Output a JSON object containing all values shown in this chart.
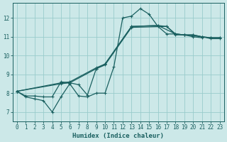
{
  "xlabel": "Humidex (Indice chaleur)",
  "xlim": [
    -0.5,
    23.5
  ],
  "ylim": [
    6.5,
    12.8
  ],
  "xticks": [
    0,
    1,
    2,
    3,
    4,
    5,
    6,
    7,
    8,
    9,
    10,
    11,
    12,
    13,
    14,
    15,
    16,
    17,
    18,
    19,
    20,
    21,
    22,
    23
  ],
  "yticks": [
    7,
    8,
    9,
    10,
    11,
    12
  ],
  "background_color": "#cce8e8",
  "grid_color": "#99cccc",
  "line_color": "#1a6060",
  "line1_x": [
    0,
    1,
    2,
    3,
    4,
    5,
    6,
    7,
    8,
    9,
    10,
    11,
    12,
    13,
    14,
    15,
    16,
    17,
    18,
    19,
    20,
    21
  ],
  "line1_y": [
    8.1,
    7.8,
    7.7,
    7.6,
    7.0,
    7.8,
    8.5,
    7.85,
    7.8,
    8.0,
    8.0,
    9.4,
    12.0,
    12.1,
    12.5,
    12.2,
    11.55,
    11.15,
    11.15,
    11.1,
    11.0,
    10.95
  ],
  "line2_x": [
    0,
    1,
    2,
    3,
    4,
    5,
    6,
    7,
    8,
    9,
    10,
    13,
    16,
    17,
    18,
    19,
    20,
    21,
    22,
    23
  ],
  "line2_y": [
    8.1,
    7.85,
    7.85,
    7.8,
    7.8,
    8.6,
    8.55,
    8.45,
    7.9,
    9.3,
    9.55,
    11.55,
    11.6,
    11.55,
    11.15,
    11.1,
    11.1,
    11.0,
    10.95,
    10.95
  ],
  "line3_x": [
    0,
    5,
    6,
    9,
    10,
    13,
    16,
    18,
    19,
    20,
    21,
    22,
    23
  ],
  "line3_y": [
    8.1,
    8.55,
    8.6,
    9.35,
    9.55,
    11.55,
    11.6,
    11.15,
    11.1,
    11.1,
    11.0,
    10.95,
    10.95
  ],
  "line4_x": [
    0,
    5,
    6,
    9,
    10,
    13,
    17,
    18,
    19,
    20,
    21,
    22,
    23
  ],
  "line4_y": [
    8.1,
    8.5,
    8.55,
    9.3,
    9.5,
    11.5,
    11.55,
    11.1,
    11.1,
    11.05,
    11.0,
    10.9,
    10.9
  ]
}
